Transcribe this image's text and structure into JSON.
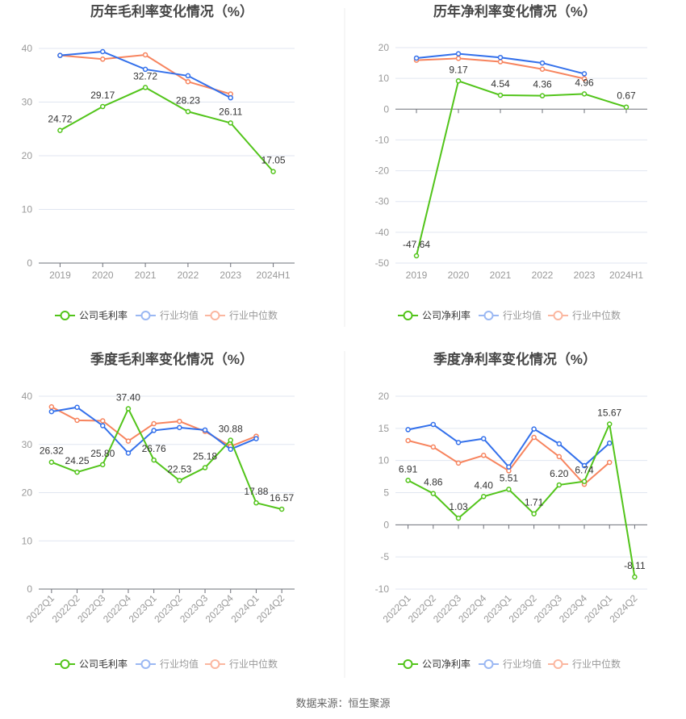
{
  "colors": {
    "company": "#52c41a",
    "industry_avg": "#3370eb",
    "industry_median": "#f7845e"
  },
  "legend_labels": {
    "gross": [
      "公司毛利率",
      "行业均值",
      "行业中位数"
    ],
    "net": [
      "公司净利率",
      "行业均值",
      "行业中位数"
    ]
  },
  "source": "数据来源：恒生聚源",
  "chart_data": [
    {
      "type": "line",
      "title": "历年毛利率变化情况（%）",
      "categories": [
        "2019",
        "2020",
        "2021",
        "2022",
        "2023",
        "2024H1"
      ],
      "ylim": [
        0,
        40
      ],
      "yticks": [
        0,
        10,
        20,
        30,
        40
      ],
      "grid": true,
      "legend": "bottom",
      "series": [
        {
          "name": "公司毛利率",
          "values": [
            24.72,
            29.17,
            32.72,
            28.23,
            26.11,
            17.05
          ],
          "labels": [
            "24.72",
            "29.17",
            "32.72",
            "28.23",
            "26.11",
            "17.05"
          ]
        },
        {
          "name": "行业均值",
          "values": [
            38.7,
            39.4,
            36.1,
            34.9,
            30.8,
            null
          ]
        },
        {
          "name": "行业中位数",
          "values": [
            38.7,
            38.0,
            38.8,
            33.8,
            31.5,
            null
          ]
        }
      ]
    },
    {
      "type": "line",
      "title": "历年净利率变化情况（%）",
      "categories": [
        "2019",
        "2020",
        "2021",
        "2022",
        "2023",
        "2024H1"
      ],
      "ylim": [
        -50,
        20
      ],
      "yticks": [
        -50,
        -40,
        -30,
        -20,
        -10,
        0,
        10,
        20
      ],
      "grid": true,
      "legend": "bottom",
      "series": [
        {
          "name": "公司净利率",
          "values": [
            -47.64,
            9.17,
            4.54,
            4.36,
            4.96,
            0.67
          ],
          "labels": [
            "-47.64",
            "9.17",
            "4.54",
            "4.36",
            "4.96",
            "0.67"
          ]
        },
        {
          "name": "行业均值",
          "values": [
            16.6,
            18.0,
            16.8,
            15.0,
            11.5,
            null
          ]
        },
        {
          "name": "行业中位数",
          "values": [
            15.9,
            16.5,
            15.4,
            13.0,
            9.9,
            null
          ]
        }
      ]
    },
    {
      "type": "line",
      "title": "季度毛利率变化情况（%）",
      "categories": [
        "2022Q1",
        "2022Q2",
        "2022Q3",
        "2022Q4",
        "2023Q1",
        "2023Q2",
        "2023Q3",
        "2023Q4",
        "2024Q1",
        "2024Q2"
      ],
      "ylim": [
        0,
        40
      ],
      "yticks": [
        0,
        10,
        20,
        30,
        40
      ],
      "grid": true,
      "legend": "bottom",
      "series": [
        {
          "name": "公司毛利率",
          "values": [
            26.32,
            24.25,
            25.8,
            37.4,
            26.76,
            22.53,
            25.18,
            30.88,
            17.88,
            16.57
          ],
          "labels": [
            "26.32",
            "24.25",
            "25.80",
            "37.40",
            "26.76",
            "22.53",
            "25.18",
            "30.88",
            "17.88",
            "16.57"
          ]
        },
        {
          "name": "行业均值",
          "values": [
            36.8,
            37.7,
            33.9,
            28.2,
            32.9,
            33.5,
            33.0,
            29.0,
            31.2,
            null
          ]
        },
        {
          "name": "行业中位数",
          "values": [
            37.8,
            35.0,
            34.9,
            30.7,
            34.3,
            34.8,
            32.7,
            29.6,
            31.7,
            null
          ]
        }
      ]
    },
    {
      "type": "line",
      "title": "季度净利率变化情况（%）",
      "categories": [
        "2022Q1",
        "2022Q2",
        "2022Q3",
        "2022Q4",
        "2023Q1",
        "2023Q2",
        "2023Q3",
        "2023Q4",
        "2024Q1",
        "2024Q2"
      ],
      "ylim": [
        -10,
        20
      ],
      "yticks": [
        -10,
        -5,
        0,
        5,
        10,
        15,
        20
      ],
      "grid": true,
      "legend": "bottom",
      "series": [
        {
          "name": "公司净利率",
          "values": [
            6.91,
            4.86,
            1.03,
            4.4,
            5.51,
            1.71,
            6.2,
            6.74,
            15.67,
            -8.11
          ],
          "labels": [
            "6.91",
            "4.86",
            "1.03",
            "4.40",
            "5.51",
            "1.71",
            "6.20",
            "6.74",
            "15.67",
            "-8.11"
          ]
        },
        {
          "name": "行业均值",
          "values": [
            14.8,
            15.6,
            12.8,
            13.4,
            9.0,
            14.9,
            12.6,
            9.2,
            12.7,
            null
          ]
        },
        {
          "name": "行业中位数",
          "values": [
            13.1,
            12.1,
            9.6,
            10.8,
            8.4,
            13.6,
            10.6,
            6.3,
            9.7,
            null
          ]
        }
      ]
    }
  ]
}
